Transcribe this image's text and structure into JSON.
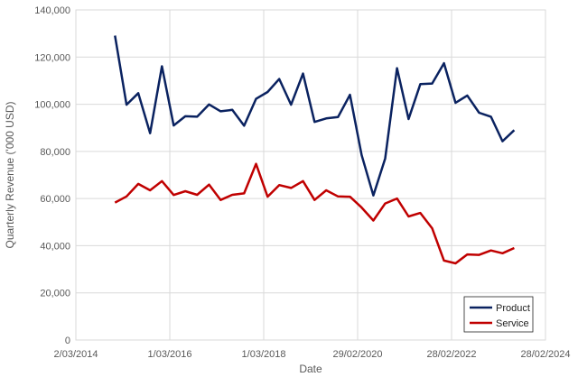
{
  "chart_data": {
    "type": "line",
    "title": "",
    "xlabel": "Date",
    "ylabel": "Quarterly Revenue ('000 USD)",
    "ylim": [
      0,
      140000
    ],
    "xlim": [
      "2014-03-02",
      "2024-02-28"
    ],
    "grid": true,
    "legend_position": "bottom-right",
    "y_ticks": [
      "0",
      "20,000",
      "40,000",
      "60,000",
      "80,000",
      "100,000",
      "120,000",
      "140,000"
    ],
    "x_ticks": [
      "2/03/2014",
      "1/03/2016",
      "1/03/2018",
      "29/02/2020",
      "28/02/2022",
      "28/02/2024"
    ],
    "x": [
      "2014-12-31",
      "2015-03-31",
      "2015-06-30",
      "2015-09-30",
      "2015-12-31",
      "2016-03-31",
      "2016-06-30",
      "2016-09-30",
      "2016-12-31",
      "2017-03-31",
      "2017-06-30",
      "2017-09-30",
      "2017-12-31",
      "2018-03-31",
      "2018-06-30",
      "2018-09-30",
      "2018-12-31",
      "2019-03-31",
      "2019-06-30",
      "2019-09-30",
      "2019-12-31",
      "2020-03-31",
      "2020-06-30",
      "2020-09-30",
      "2020-12-31",
      "2021-03-31",
      "2021-06-30",
      "2021-09-30",
      "2021-12-31",
      "2022-03-31",
      "2022-06-30",
      "2022-09-30",
      "2022-12-31",
      "2023-03-31",
      "2023-06-30"
    ],
    "series": [
      {
        "name": "Product",
        "color": "#0a2260",
        "values": [
          129100,
          99800,
          104700,
          87700,
          116100,
          91000,
          94900,
          94700,
          99900,
          97000,
          97600,
          90900,
          102300,
          105200,
          110700,
          99800,
          113000,
          92500,
          94000,
          94600,
          104000,
          78500,
          61300,
          77000,
          115300,
          93700,
          108500,
          108800,
          117400,
          100600,
          103700,
          96400,
          94700,
          84300,
          89000
        ]
      },
      {
        "name": "Service",
        "color": "#c00000",
        "values": [
          58300,
          60900,
          66200,
          63500,
          67400,
          61500,
          63100,
          61600,
          65900,
          59400,
          61600,
          62200,
          74700,
          60800,
          65700,
          64500,
          67400,
          59400,
          63500,
          60900,
          60800,
          56200,
          50700,
          57900,
          60000,
          52400,
          53900,
          47400,
          33700,
          32500,
          36300,
          36100,
          38000,
          36800,
          39000
        ]
      }
    ]
  }
}
